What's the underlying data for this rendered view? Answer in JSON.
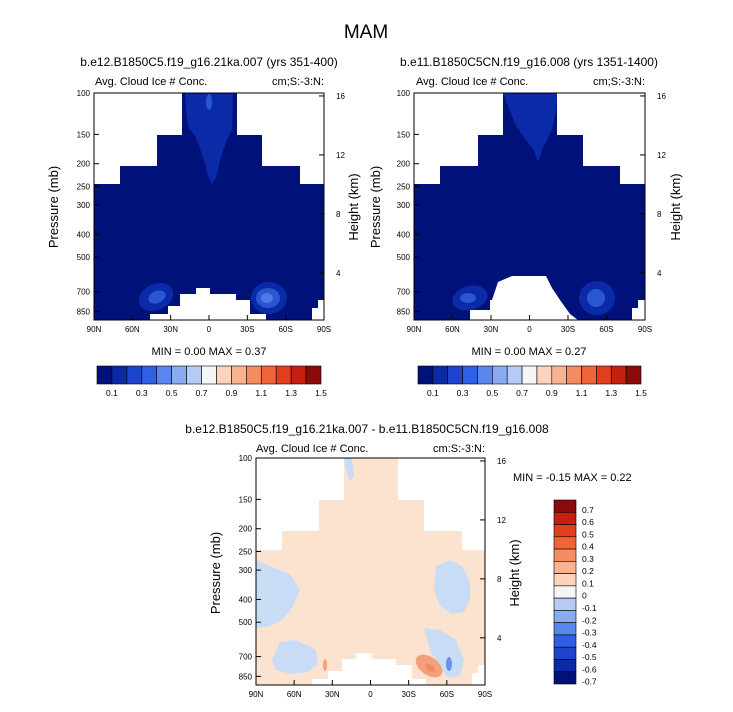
{
  "season_title": "MAM",
  "colors": {
    "white": "#ffffff",
    "dark_blue": "#00127a",
    "blue_2": "#0a2aa8",
    "blue_3": "#2a56d4",
    "blue_4": "#4a7ae6",
    "pale_blue": "#c9dcf6",
    "peach": "#fbe3cf",
    "salmon": "#f3a07c"
  },
  "panels": [
    {
      "title": "b.e12.B1850C5.f19_g16.21ka.007 (yrs 351-400)",
      "left_label": "Avg. Cloud Ice # Conc.",
      "right_label": "cm;S:-3:N:",
      "minmax": "MIN =  0.00   MAX =  0.37"
    },
    {
      "title": "b.e11.B1850C5CN.f19_g16.008 (yrs 1351-1400)",
      "left_label": "Avg. Cloud Ice # Conc.",
      "right_label": "cm;S:-3:N:",
      "minmax": "MIN =  0.00   MAX =  0.27"
    },
    {
      "title": "b.e12.B1850C5.f19_g16.21ka.007 - b.e11.B1850C5CN.f19_g16.008",
      "left_label": "Avg. Cloud Ice # Conc.",
      "right_label": "cm:S:-3:N:",
      "minmax": "MIN =  -0.15   MAX =  0.22"
    }
  ],
  "chart_data": [
    {
      "type": "heatmap",
      "title": "b.e12.B1850C5.f19_g16.21ka.007 (yrs 351-400)",
      "xlabel": "",
      "ylabel": "Pressure (mb)",
      "y2label": "Height (km)",
      "x_ticks": [
        "90N",
        "60N",
        "30N",
        "0",
        "30S",
        "60S",
        "90S"
      ],
      "y_ticks": [
        "100",
        "150",
        "200",
        "250",
        "300",
        "400",
        "500",
        "700",
        "850"
      ],
      "y2_ticks": [
        "16",
        "12",
        "8",
        "4"
      ],
      "min": 0.0,
      "max": 0.37,
      "colorbar_labels": [
        "0.1",
        "0.3",
        "0.5",
        "0.7",
        "0.9",
        "1.1",
        "1.3",
        "1.5"
      ]
    },
    {
      "type": "heatmap",
      "title": "b.e11.B1850C5CN.f19_g16.008 (yrs 1351-1400)",
      "xlabel": "",
      "ylabel": "Pressure (mb)",
      "y2label": "Height (km)",
      "x_ticks": [
        "90N",
        "60N",
        "30N",
        "0",
        "30S",
        "60S",
        "90S"
      ],
      "y_ticks": [
        "100",
        "150",
        "200",
        "250",
        "300",
        "400",
        "500",
        "700",
        "850"
      ],
      "y2_ticks": [
        "16",
        "12",
        "8",
        "4"
      ],
      "min": 0.0,
      "max": 0.27,
      "colorbar_labels": [
        "0.1",
        "0.3",
        "0.5",
        "0.7",
        "0.9",
        "1.1",
        "1.3",
        "1.5"
      ]
    },
    {
      "type": "heatmap",
      "title": "b.e12.B1850C5.f19_g16.21ka.007 - b.e11.B1850C5CN.f19_g16.008",
      "xlabel": "",
      "ylabel": "Pressure (mb)",
      "y2label": "Height (km)",
      "x_ticks": [
        "90N",
        "60N",
        "30N",
        "0",
        "30S",
        "60S",
        "90S"
      ],
      "y_ticks": [
        "100",
        "150",
        "200",
        "250",
        "300",
        "400",
        "500",
        "700",
        "850"
      ],
      "y2_ticks": [
        "16",
        "12",
        "8",
        "4"
      ],
      "min": -0.15,
      "max": 0.22,
      "colorbar_labels": [
        "0.7",
        "0.6",
        "0.5",
        "0.4",
        "0.3",
        "0.2",
        "0.1",
        "0",
        "-0.1",
        "-0.2",
        "-0.3",
        "-0.4",
        "-0.5",
        "-0.6",
        "-0.7"
      ]
    }
  ],
  "colorbar_top": {
    "colors": [
      "#00127a",
      "#0a2aa8",
      "#1d44cc",
      "#2e5fe6",
      "#5b86ef",
      "#8aaaf2",
      "#b5cbf6",
      "#f5f5f5",
      "#fcd4bd",
      "#f9b393",
      "#f68c62",
      "#f0643a",
      "#e13e1c",
      "#c41f10",
      "#8b0a0a"
    ]
  },
  "colorbar_diff": {
    "colors": [
      "#8b0a0a",
      "#c41f10",
      "#e13e1c",
      "#f0643a",
      "#f68c62",
      "#f9b393",
      "#fcd4bd",
      "#f5f5f5",
      "#b5cbf6",
      "#8aaaf2",
      "#5b86ef",
      "#2e5fe6",
      "#1d44cc",
      "#0a2aa8",
      "#00127a"
    ]
  }
}
